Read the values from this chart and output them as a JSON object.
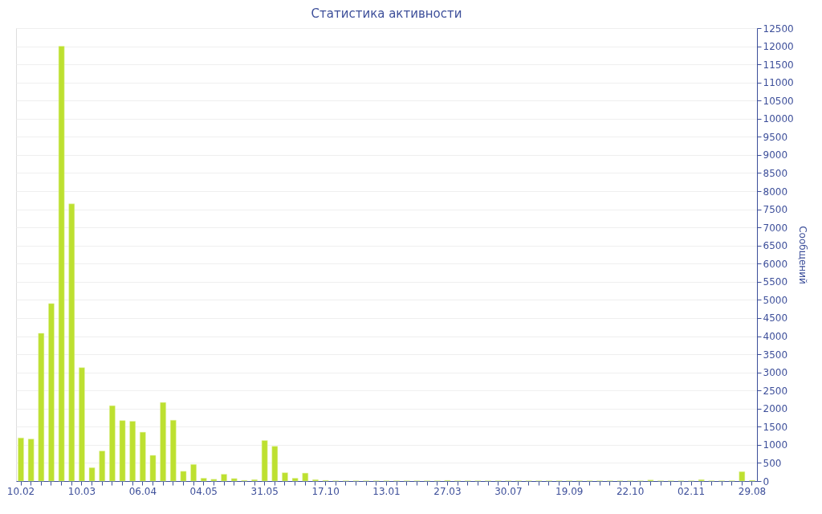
{
  "chart_data": {
    "type": "bar",
    "title": "Статистика активности",
    "ylabel": "Сообщений",
    "categories": [
      "10.02",
      null,
      null,
      null,
      null,
      null,
      "10.03",
      null,
      null,
      null,
      null,
      null,
      "06.04",
      null,
      null,
      null,
      null,
      null,
      "04.05",
      null,
      null,
      null,
      null,
      null,
      "31.05",
      null,
      null,
      null,
      null,
      null,
      "17.10",
      null,
      null,
      null,
      null,
      null,
      "13.01",
      null,
      null,
      null,
      null,
      null,
      "27.03",
      null,
      null,
      null,
      null,
      null,
      "30.07",
      null,
      null,
      null,
      null,
      null,
      "19.09",
      null,
      null,
      null,
      null,
      null,
      "22.10",
      null,
      null,
      null,
      null,
      null,
      "02.11",
      null,
      null,
      null,
      null,
      null,
      "29.08"
    ],
    "values": [
      1190,
      1160,
      4080,
      4900,
      12000,
      7650,
      3130,
      370,
      830,
      2080,
      1670,
      1650,
      1350,
      710,
      2170,
      1680,
      270,
      460,
      80,
      50,
      190,
      70,
      20,
      40,
      1120,
      960,
      230,
      80,
      220,
      40,
      20,
      10,
      10,
      10,
      10,
      10,
      10,
      10,
      10,
      10,
      10,
      10,
      20,
      10,
      10,
      10,
      10,
      10,
      10,
      10,
      10,
      10,
      10,
      10,
      10,
      10,
      10,
      10,
      10,
      10,
      10,
      10,
      30,
      10,
      10,
      10,
      10,
      40,
      10,
      10,
      10,
      260,
      20
    ],
    "color": "#bde030",
    "ylim": [
      0,
      12500
    ],
    "yticks": [
      0,
      500,
      1000,
      1500,
      2000,
      2500,
      3000,
      3500,
      4000,
      4500,
      5000,
      5500,
      6000,
      6500,
      7000,
      7500,
      8000,
      8500,
      9000,
      9500,
      10000,
      10500,
      11000,
      11500,
      12000,
      12500
    ],
    "grid": "y"
  }
}
